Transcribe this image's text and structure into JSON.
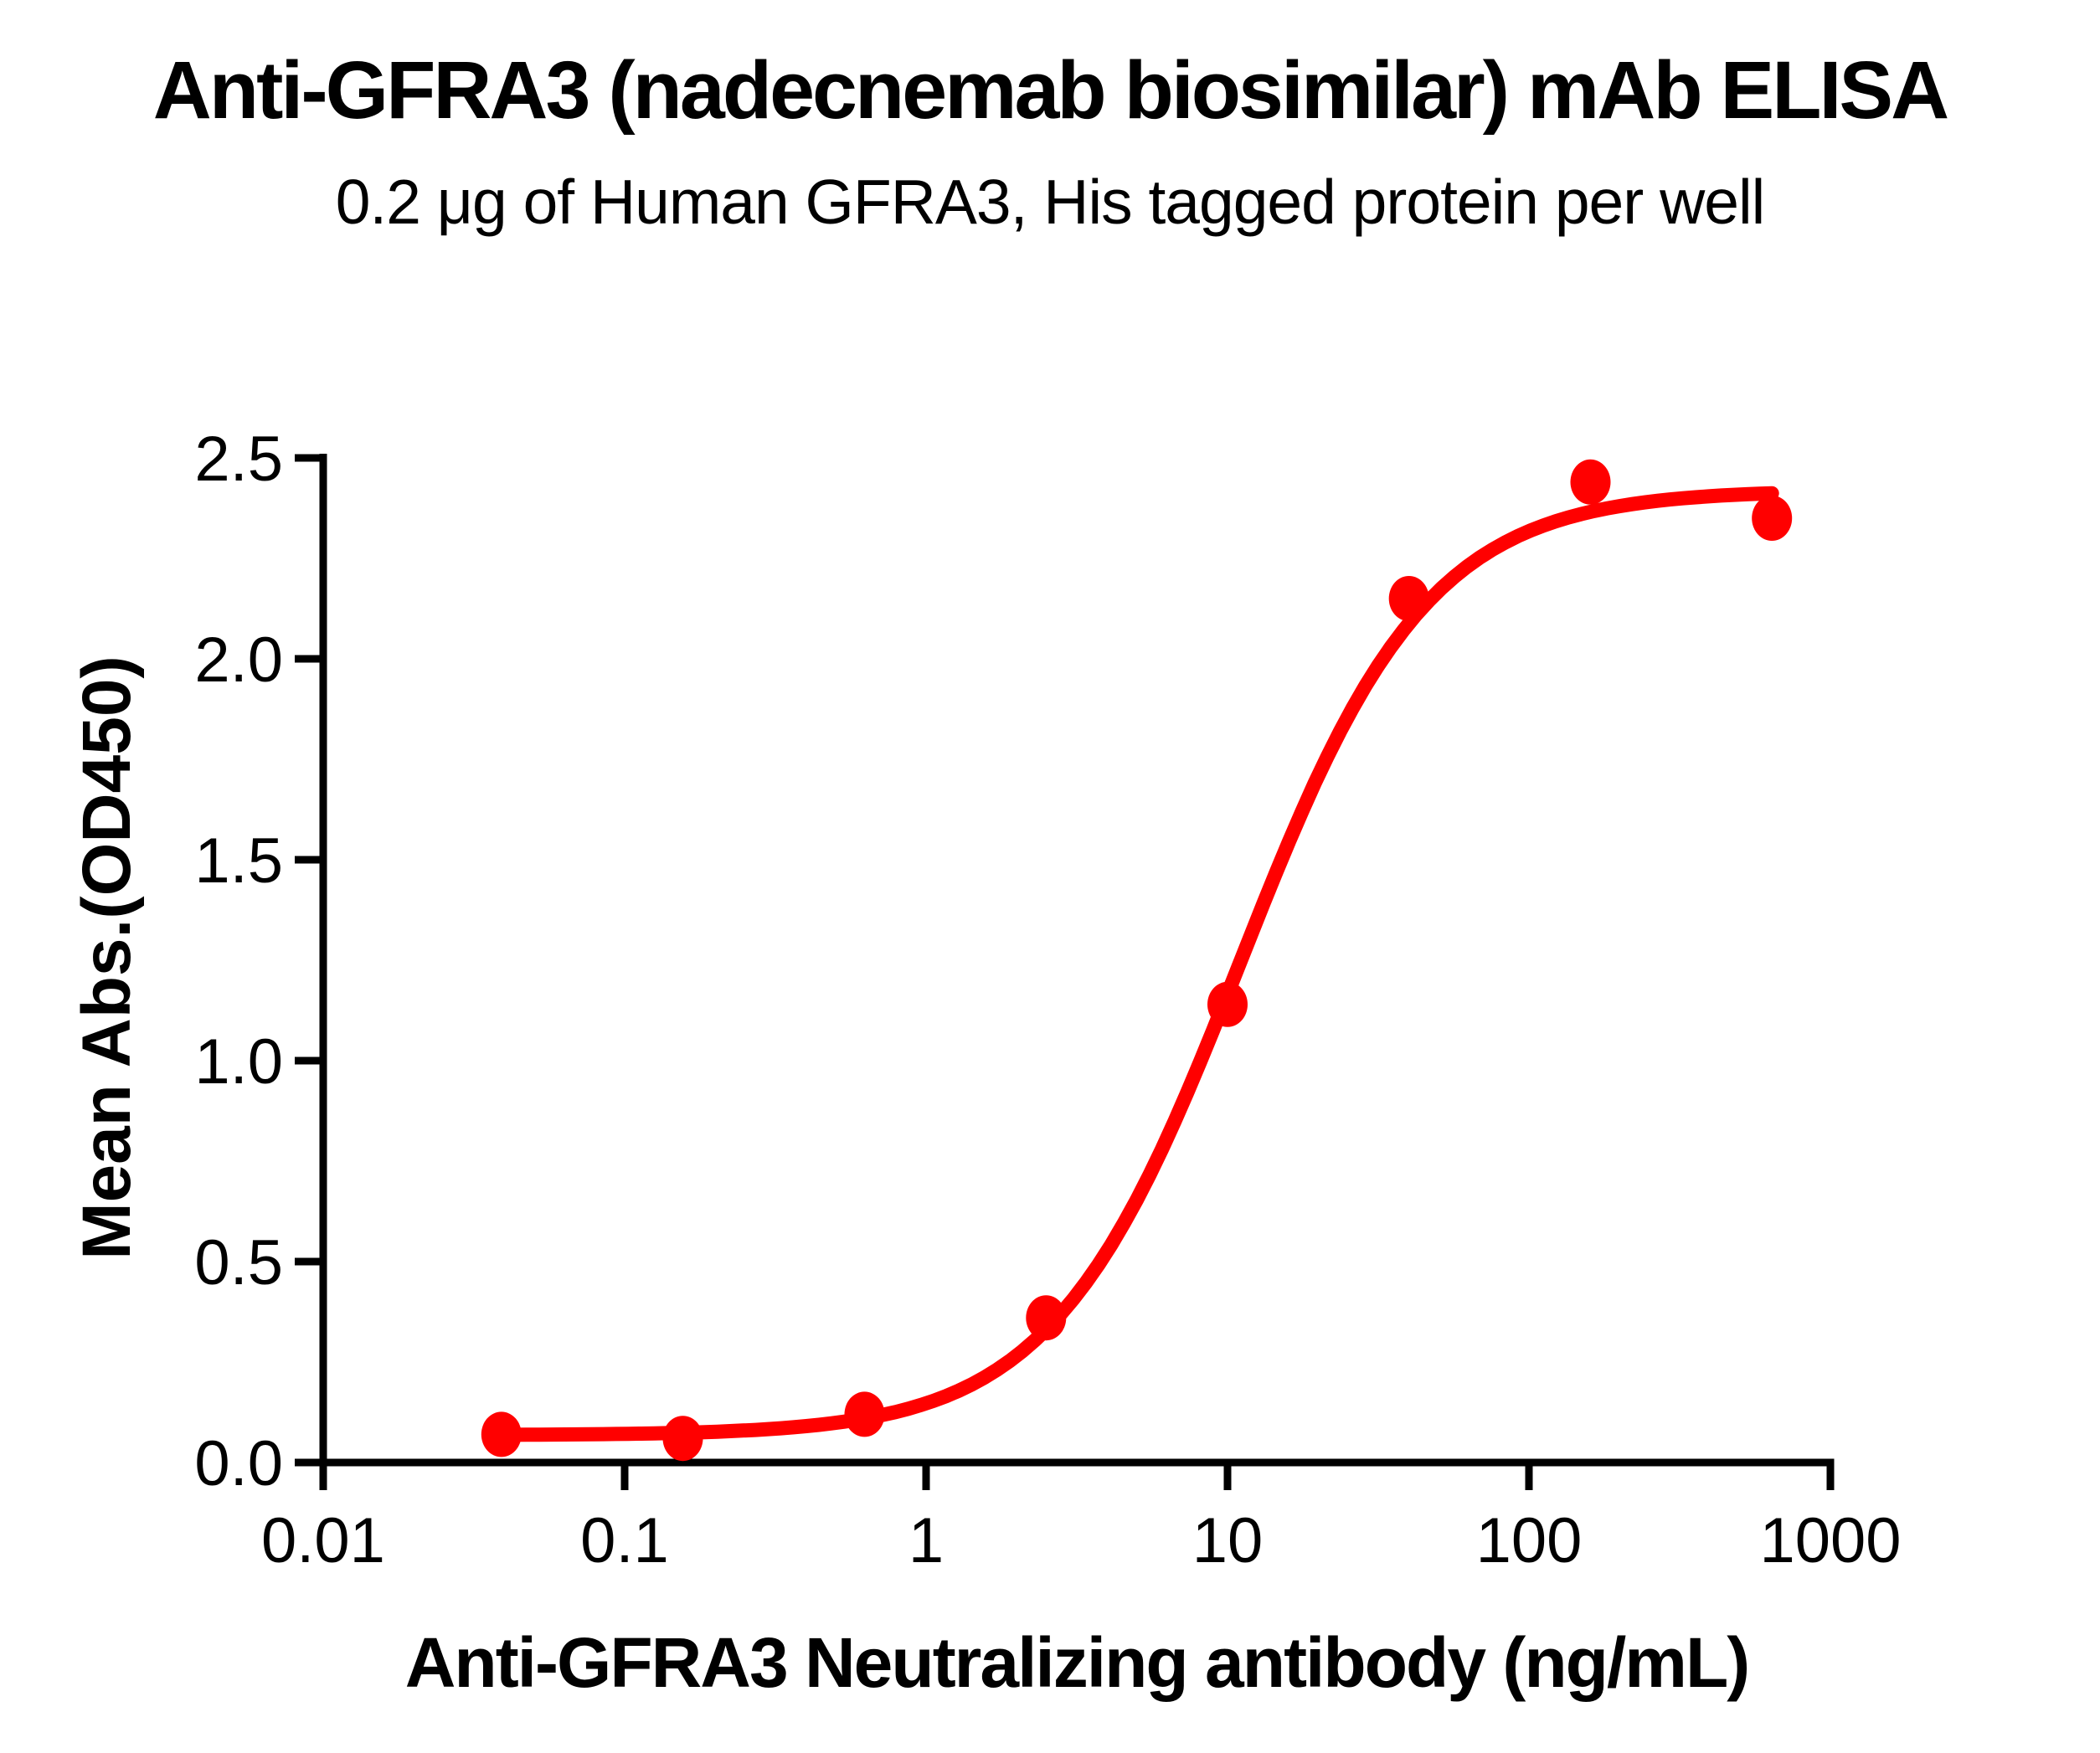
{
  "chart_data": {
    "type": "scatter",
    "title": "Anti-GFRA3 (nadecnemab biosimilar) mAb ELISA",
    "subtitle": "0.2 μg of Human GFRA3, His tagged protein per well",
    "xlabel": "Anti-GFRA3 Neutralizing antibody (ng/mL)",
    "ylabel": "Mean Abs.(OD450)",
    "x_scale": "log10",
    "xlim": [
      0.01,
      1000
    ],
    "ylim": [
      0.0,
      2.5
    ],
    "grid": "off",
    "legend": "none",
    "x_ticks": [
      {
        "v": 0.01,
        "label": "0.01"
      },
      {
        "v": 0.1,
        "label": "0.1"
      },
      {
        "v": 1,
        "label": "1"
      },
      {
        "v": 10,
        "label": "10"
      },
      {
        "v": 100,
        "label": "100"
      },
      {
        "v": 1000,
        "label": "1000"
      }
    ],
    "y_ticks": [
      {
        "v": 0.0,
        "label": "0.0"
      },
      {
        "v": 0.5,
        "label": "0.5"
      },
      {
        "v": 1.0,
        "label": "1.0"
      },
      {
        "v": 1.5,
        "label": "1.5"
      },
      {
        "v": 2.0,
        "label": "2.0"
      },
      {
        "v": 2.5,
        "label": "2.5"
      }
    ],
    "points": [
      [
        0.039,
        0.07
      ],
      [
        0.156,
        0.06
      ],
      [
        0.625,
        0.12
      ],
      [
        2.5,
        0.36
      ],
      [
        10,
        1.14
      ],
      [
        40,
        2.15
      ],
      [
        160,
        2.44
      ],
      [
        640,
        2.35
      ]
    ],
    "fit_curve": {
      "model": "4PL",
      "bottom": 0.068,
      "top": 2.42,
      "ec50": 11,
      "hill": 1.4,
      "x_start": 0.039,
      "x_end": 640
    },
    "series_color": "#FF0000",
    "axis_color": "#000000",
    "background_color": "#FFFFFF"
  }
}
